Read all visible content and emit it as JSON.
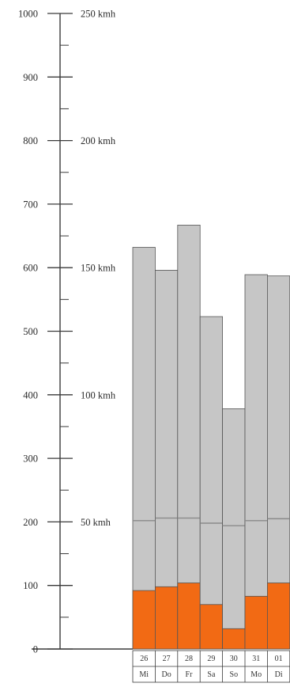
{
  "colors": {
    "axis": "#3a3a3a",
    "bar_gray": "#c6c6c6",
    "bar_orange": "#f26a14",
    "bar_outline": "#555555",
    "divider": "#8a8a8a",
    "background": "#ffffff"
  },
  "chart_data": {
    "type": "bar",
    "title": "",
    "xlabel": "",
    "ylabel": "",
    "ylim": [
      0,
      1000
    ],
    "yticks": [
      0,
      100,
      200,
      300,
      400,
      500,
      600,
      700,
      800,
      900,
      1000
    ],
    "minor_step": 50,
    "grid": false,
    "speed_axis": {
      "labels": [
        {
          "text": "50 kmh",
          "at": 200
        },
        {
          "text": "100 kmh",
          "at": 400
        },
        {
          "text": "150 kmh",
          "at": 600
        },
        {
          "text": "200 kmh",
          "at": 800
        },
        {
          "text": "250 kmh",
          "at": 1000
        }
      ]
    },
    "categories": [
      {
        "day": "26",
        "weekday": "Mi"
      },
      {
        "day": "27",
        "weekday": "Do"
      },
      {
        "day": "28",
        "weekday": "Fr"
      },
      {
        "day": "29",
        "weekday": "Sa"
      },
      {
        "day": "30",
        "weekday": "So"
      },
      {
        "day": "31",
        "weekday": "Mo"
      },
      {
        "day": "01",
        "weekday": "Di"
      }
    ],
    "series": [
      {
        "values": [
          92,
          98,
          104,
          70,
          32,
          83,
          104
        ],
        "color": "#f26a14"
      },
      {
        "values": [
          632,
          596,
          667,
          523,
          378,
          589,
          587
        ],
        "color": "#c6c6c6"
      }
    ],
    "marker_values": [
      202,
      206,
      206,
      198,
      194,
      202,
      205
    ]
  }
}
